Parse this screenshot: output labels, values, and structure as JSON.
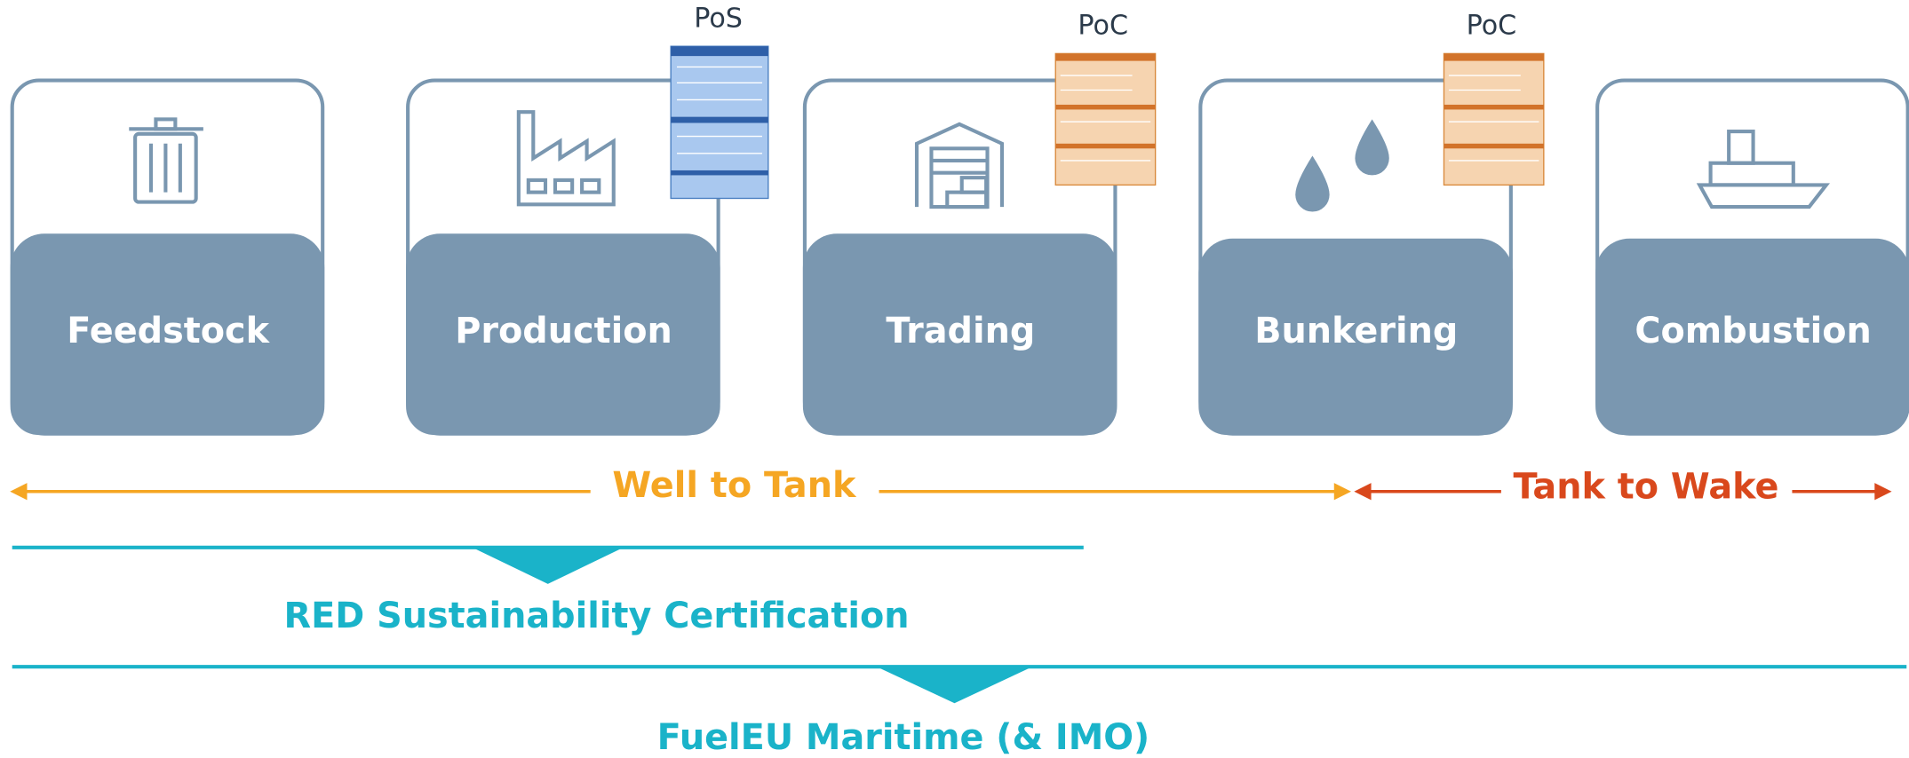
{
  "stages": [
    {
      "label": "Feedstock"
    },
    {
      "label": "Production"
    },
    {
      "label": "Trading"
    },
    {
      "label": "Bunkering"
    },
    {
      "label": "Combustion"
    }
  ],
  "documents": [
    "PoS",
    "PoC",
    "PoC"
  ],
  "phases": [
    "Well to Tank",
    "Tank to Wake"
  ],
  "schemes": [
    "RED Sustainability Certification",
    "FuelEU Maritime (& IMO)"
  ]
}
